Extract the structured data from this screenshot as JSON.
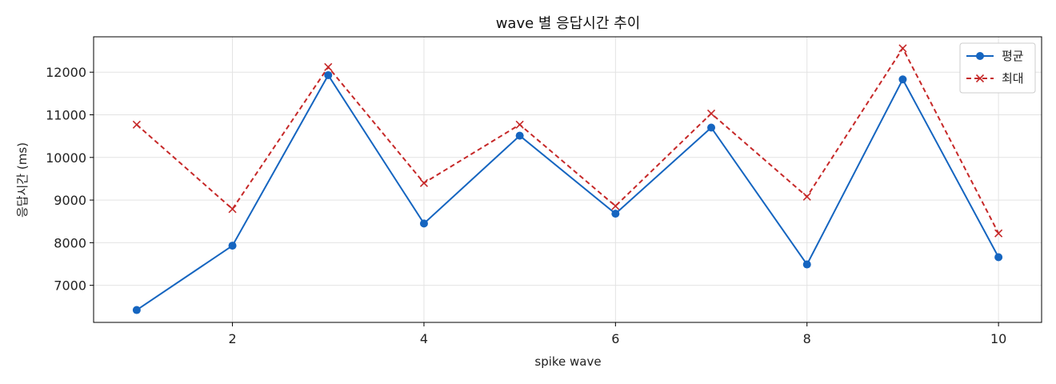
{
  "chart_data": {
    "type": "line",
    "title": "wave 별 응답시간 추이",
    "xlabel": "spike wave",
    "ylabel": "응답시간 (ms)",
    "x": [
      1,
      2,
      3,
      4,
      5,
      6,
      7,
      8,
      9,
      10
    ],
    "xlim": [
      0.55,
      10.45
    ],
    "ylim": [
      6130,
      12830
    ],
    "xticks": [
      2,
      4,
      6,
      8,
      10
    ],
    "yticks": [
      7000,
      8000,
      9000,
      10000,
      11000,
      12000
    ],
    "grid": true,
    "legend_position": "top-right",
    "series": [
      {
        "name": "평균",
        "color": "#1565c0",
        "line_style": "solid",
        "marker": "circle",
        "values": [
          6420,
          7930,
          11930,
          8450,
          10510,
          8680,
          10700,
          7490,
          11830,
          7660
        ]
      },
      {
        "name": "최대",
        "color": "#c62828",
        "line_style": "dashed",
        "marker": "x",
        "values": [
          10770,
          8790,
          12120,
          9400,
          10770,
          8860,
          11030,
          9080,
          12560,
          8220
        ]
      }
    ]
  }
}
